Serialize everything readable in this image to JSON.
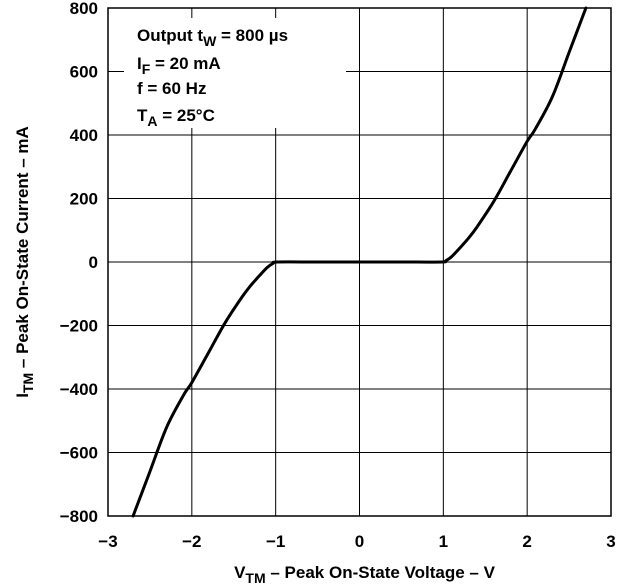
{
  "chart_data": {
    "type": "line",
    "xlabel": {
      "symbol": "V",
      "sub": "TM",
      "text": " – Peak On-State Voltage – V"
    },
    "ylabel": {
      "symbol": "I",
      "sub": "TM",
      "text": " – Peak On-State Current – mA"
    },
    "xlim": [
      -3,
      3
    ],
    "ylim": [
      -800,
      800
    ],
    "xticks": [
      -3,
      -2,
      -1,
      0,
      1,
      2,
      3
    ],
    "yticks": [
      -800,
      -600,
      -400,
      -200,
      0,
      200,
      400,
      600,
      800
    ],
    "xtick_labels": [
      "−3",
      "−2",
      "−1",
      "0",
      "1",
      "2",
      "3"
    ],
    "ytick_labels": [
      "−800",
      "−600",
      "−400",
      "−200",
      "0",
      "200",
      "400",
      "600",
      "800"
    ],
    "grid": true,
    "legend_position": "top-left",
    "conditions": [
      {
        "pre": "Output t",
        "sub": "W",
        "post": " = 800 µs"
      },
      {
        "pre": "I",
        "sub": "F",
        "post": " = 20 mA"
      },
      {
        "pre": "f = 60 Hz",
        "sub": "",
        "post": ""
      },
      {
        "pre": "T",
        "sub": "A",
        "post": " = 25°C"
      }
    ],
    "series": [
      {
        "x": [
          -2.7,
          -2.5,
          -2.3,
          -2.1,
          -2.0,
          -1.8,
          -1.6,
          -1.4,
          -1.3,
          -1.2,
          -1.1,
          -1.03,
          -0.98,
          -0.5,
          0,
          0.5,
          0.98,
          1.03,
          1.1,
          1.2,
          1.3,
          1.4,
          1.6,
          1.8,
          2.0,
          2.1,
          2.3,
          2.5,
          2.7
        ],
        "y": [
          -800,
          -660,
          -520,
          -420,
          -380,
          -285,
          -190,
          -110,
          -75,
          -45,
          -17,
          -4,
          0,
          0,
          0,
          0,
          0,
          4,
          17,
          45,
          75,
          110,
          190,
          285,
          380,
          420,
          520,
          660,
          800
        ]
      }
    ],
    "colors": {
      "line": "#000000",
      "grid": "#000000",
      "background": "#ffffff"
    }
  }
}
